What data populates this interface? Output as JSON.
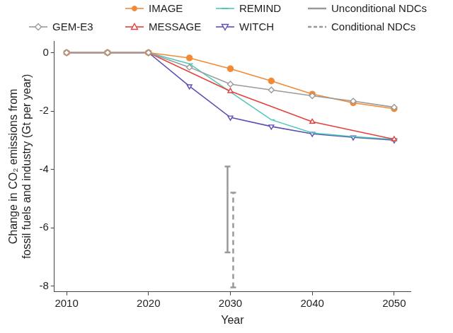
{
  "chart_data": {
    "type": "line",
    "x": [
      2010,
      2015,
      2020,
      2025,
      2030,
      2035,
      2040,
      2045,
      2050
    ],
    "xlabel": "Year",
    "ylabel": [
      "Change in CO₂ emissions from",
      "fossil fuels and industry (Gt per year)"
    ],
    "xlim": [
      2008.5,
      2052
    ],
    "xticks": [
      2010,
      2020,
      2030,
      2040,
      2050
    ],
    "ylim": [
      -8.2,
      0.4
    ],
    "yticks": [
      -8,
      -6,
      -4,
      -2,
      0
    ],
    "grid": false,
    "legend": "top",
    "series": [
      {
        "name": "GEM-E3",
        "color": "#9a9a9a",
        "marker": "diamond",
        "values": [
          0,
          0,
          0,
          -0.5,
          -1.08,
          -1.28,
          -1.48,
          -1.66,
          -1.87
        ]
      },
      {
        "name": "IMAGE",
        "color": "#f28a35",
        "marker": "circle",
        "values": [
          0,
          0,
          0,
          -0.18,
          -0.55,
          -0.97,
          -1.42,
          -1.72,
          -1.92
        ]
      },
      {
        "name": "MESSAGE",
        "color": "#e5413c",
        "marker": "triangle",
        "x": [
          2010,
          2015,
          2020,
          2030,
          2040,
          2050
        ],
        "values": [
          0,
          0,
          0,
          -1.32,
          -2.37,
          -2.97
        ]
      },
      {
        "name": "REMIND",
        "color": "#4fc9b7",
        "marker": "dash",
        "values": [
          0,
          0,
          0,
          -0.38,
          -1.35,
          -2.3,
          -2.75,
          -2.88,
          -2.97
        ]
      },
      {
        "name": "WITCH",
        "color": "#5b50b5",
        "marker": "triangle_down",
        "values": [
          0,
          0,
          0,
          -1.15,
          -2.22,
          -2.53,
          -2.78,
          -2.9,
          -3.0
        ]
      }
    ],
    "error_bars": [
      {
        "name": "Unconditional NDCs",
        "color": "#999999",
        "line_style": "solid",
        "x": 2030,
        "low": -6.85,
        "high": -3.9
      },
      {
        "name": "Conditional NDCs",
        "color": "#999999",
        "line_style": "dashed",
        "x": 2030,
        "low": -8.05,
        "high": -4.8
      }
    ]
  }
}
